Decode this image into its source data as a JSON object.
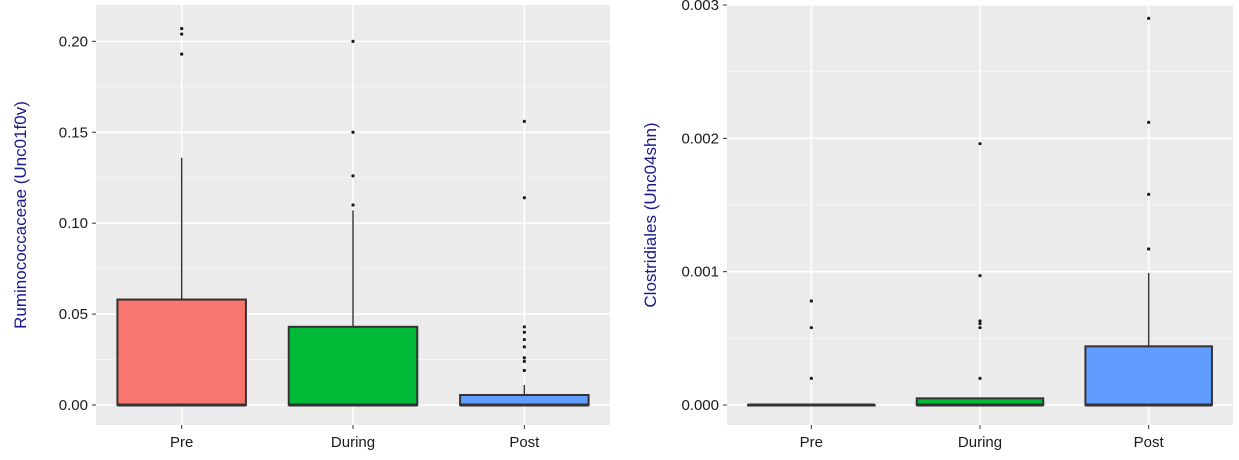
{
  "chart_data": [
    {
      "type": "box",
      "categories": [
        "Pre",
        "During",
        "Post"
      ],
      "ylabel": "Ruminococcaceae (Unc01f0v)",
      "xlabel": "",
      "ylim": [
        -0.011,
        0.22
      ],
      "yticks": [
        0.0,
        0.05,
        0.1,
        0.15,
        0.2
      ],
      "ytick_labels": [
        "0.00",
        "0.05",
        "0.10",
        "0.15",
        "0.20"
      ],
      "grid": true,
      "boxes": [
        {
          "category": "Pre",
          "color": "#F8766D",
          "q1": 0.0,
          "median": 0.0,
          "q3": 0.058,
          "whisker_low": 0.0,
          "whisker_high": 0.136,
          "outliers": [
            0.193,
            0.204,
            0.207
          ]
        },
        {
          "category": "During",
          "color": "#00BA38",
          "q1": 0.0,
          "median": 0.0,
          "q3": 0.043,
          "whisker_low": 0.0,
          "whisker_high": 0.107,
          "outliers": [
            0.11,
            0.126,
            0.15,
            0.2
          ]
        },
        {
          "category": "Post",
          "color": "#619CFF",
          "q1": 0.0,
          "median": 0.0,
          "q3": 0.0055,
          "whisker_low": 0.0,
          "whisker_high": 0.011,
          "outliers": [
            0.019,
            0.024,
            0.026,
            0.032,
            0.036,
            0.04,
            0.043,
            0.114,
            0.156
          ]
        }
      ]
    },
    {
      "type": "box",
      "categories": [
        "Pre",
        "During",
        "Post"
      ],
      "ylabel": "Clostridiales (Unc04shn)",
      "xlabel": "",
      "ylim": [
        -0.00015,
        0.003
      ],
      "yticks": [
        0.0,
        0.001,
        0.002,
        0.003
      ],
      "ytick_labels": [
        "0.000",
        "0.001",
        "0.002",
        "0.003"
      ],
      "grid": true,
      "boxes": [
        {
          "category": "Pre",
          "color": "#F8766D",
          "q1": 0.0,
          "median": 0.0,
          "q3": 0.0,
          "whisker_low": 0.0,
          "whisker_high": 0.0,
          "outliers": [
            0.0002,
            0.00058,
            0.00078
          ]
        },
        {
          "category": "During",
          "color": "#00BA38",
          "q1": 0.0,
          "median": 0.0,
          "q3": 5e-05,
          "whisker_low": 0.0,
          "whisker_high": 5e-05,
          "outliers": [
            0.0002,
            0.00058,
            0.00061,
            0.00063,
            0.00097,
            0.00196
          ]
        },
        {
          "category": "Post",
          "color": "#619CFF",
          "q1": 0.0,
          "median": 0.0,
          "q3": 0.00044,
          "whisker_low": 0.0,
          "whisker_high": 0.00099,
          "outliers": [
            0.00117,
            0.00158,
            0.00212,
            0.0029
          ]
        }
      ]
    }
  ]
}
